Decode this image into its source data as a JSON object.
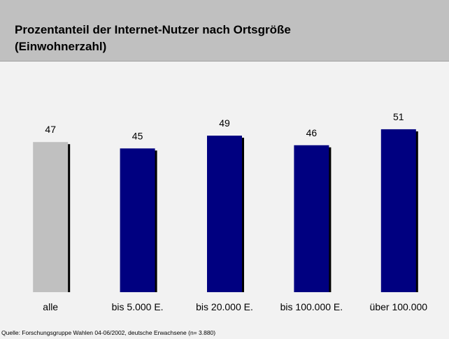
{
  "chart_data": {
    "type": "bar",
    "title": "Prozentanteil der Internet-Nutzer nach Ortsgröße (Einwohnerzahl)",
    "categories": [
      "alle",
      "bis 5.000 E.",
      "bis 20.000 E.",
      "bis 100.000 E.",
      "über 100.000"
    ],
    "values": [
      47,
      45,
      49,
      46,
      51
    ],
    "colors": [
      "#c0c0c0",
      "#000080",
      "#000080",
      "#000080",
      "#000080"
    ],
    "source": "Quelle: Forschungsgruppe Wahlen 04-06/2002, deutsche Erwachsene (n= 3.880)"
  }
}
